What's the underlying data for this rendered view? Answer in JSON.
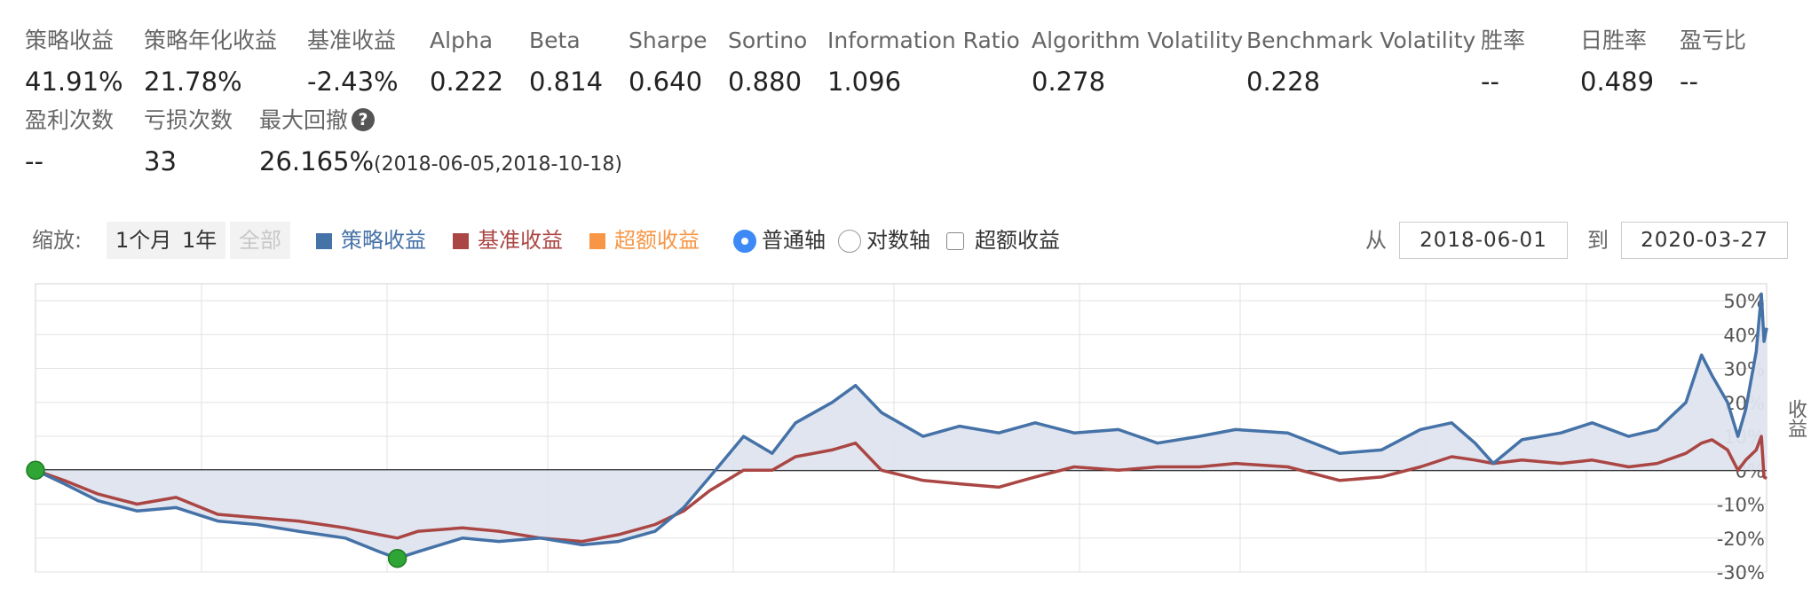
{
  "stats": {
    "row1": [
      {
        "label": "策略收益",
        "value": "41.91%"
      },
      {
        "label": "策略年化收益",
        "value": "21.78%"
      },
      {
        "label": "基准收益",
        "value": "-2.43%"
      },
      {
        "label": "Alpha",
        "value": "0.222"
      },
      {
        "label": "Beta",
        "value": "0.814"
      },
      {
        "label": "Sharpe",
        "value": "0.640"
      },
      {
        "label": "Sortino",
        "value": "0.880"
      },
      {
        "label": "Information Ratio",
        "value": "1.096"
      },
      {
        "label": "Algorithm Volatility",
        "value": "0.278"
      },
      {
        "label": "Benchmark Volatility",
        "value": "0.228"
      },
      {
        "label": "胜率",
        "value": "--"
      },
      {
        "label": "日胜率",
        "value": "0.489"
      },
      {
        "label": "盈亏比",
        "value": "--"
      }
    ],
    "row2": [
      {
        "label": "盈利次数",
        "value": "--"
      },
      {
        "label": "亏损次数",
        "value": "33"
      },
      {
        "label": "最大回撤",
        "value": "26.165%",
        "sub": "(2018-06-05,2018-10-18)"
      }
    ]
  },
  "toolbar": {
    "zoom_label": "缩放:",
    "zoom_buttons": [
      "1个月",
      "1年",
      "全部"
    ],
    "legend": [
      {
        "label": "策略收益",
        "color": "#4572a7"
      },
      {
        "label": "基准收益",
        "color": "#aa4643"
      },
      {
        "label": "超额收益",
        "color": "#f79646"
      }
    ],
    "axis_options": [
      "普通轴",
      "对数轴"
    ],
    "excess_checkbox": "超额收益",
    "from_label": "从",
    "from_date": "2018-06-01",
    "to_label": "到",
    "to_date": "2020-03-27"
  },
  "chart_data": {
    "type": "line",
    "ylabel": "收益",
    "yticks": [
      "50%",
      "40%",
      "30%",
      "20%",
      "10%",
      "0%",
      "-10%",
      "-20%",
      "-30%"
    ],
    "ylim": [
      -30,
      55
    ],
    "xlim": [
      "2018-06-01",
      "2020-03-27"
    ],
    "legend_position": "top",
    "grid": true,
    "series": [
      {
        "name": "策略收益",
        "color": "#4572a7",
        "fill": "#dfe4ef",
        "points": [
          [
            "2018-06-01",
            0
          ],
          [
            "2018-06-12",
            -4
          ],
          [
            "2018-06-25",
            -9
          ],
          [
            "2018-07-10",
            -12
          ],
          [
            "2018-07-25",
            -11
          ],
          [
            "2018-08-10",
            -15
          ],
          [
            "2018-08-25",
            -16
          ],
          [
            "2018-09-10",
            -18
          ],
          [
            "2018-09-28",
            -20
          ],
          [
            "2018-10-11",
            -24
          ],
          [
            "2018-10-18",
            -26
          ],
          [
            "2018-10-26",
            -24
          ],
          [
            "2018-11-12",
            -20
          ],
          [
            "2018-11-26",
            -21
          ],
          [
            "2018-12-12",
            -20
          ],
          [
            "2018-12-28",
            -22
          ],
          [
            "2019-01-11",
            -21
          ],
          [
            "2019-01-25",
            -18
          ],
          [
            "2019-02-05",
            -11
          ],
          [
            "2019-02-15",
            -2
          ],
          [
            "2019-02-28",
            10
          ],
          [
            "2019-03-11",
            5
          ],
          [
            "2019-03-20",
            14
          ],
          [
            "2019-04-03",
            20
          ],
          [
            "2019-04-12",
            25
          ],
          [
            "2019-04-22",
            17
          ],
          [
            "2019-05-08",
            10
          ],
          [
            "2019-05-22",
            13
          ],
          [
            "2019-06-06",
            11
          ],
          [
            "2019-06-20",
            14
          ],
          [
            "2019-07-05",
            11
          ],
          [
            "2019-07-22",
            12
          ],
          [
            "2019-08-06",
            8
          ],
          [
            "2019-08-22",
            10
          ],
          [
            "2019-09-05",
            12
          ],
          [
            "2019-09-25",
            11
          ],
          [
            "2019-10-15",
            5
          ],
          [
            "2019-10-31",
            6
          ],
          [
            "2019-11-15",
            12
          ],
          [
            "2019-11-27",
            14
          ],
          [
            "2019-12-06",
            8
          ],
          [
            "2019-12-13",
            2
          ],
          [
            "2019-12-24",
            9
          ],
          [
            "2020-01-08",
            11
          ],
          [
            "2020-01-20",
            14
          ],
          [
            "2020-02-03",
            10
          ],
          [
            "2020-02-14",
            12
          ],
          [
            "2020-02-25",
            20
          ],
          [
            "2020-03-02",
            34
          ],
          [
            "2020-03-06",
            28
          ],
          [
            "2020-03-12",
            20
          ],
          [
            "2020-03-16",
            10
          ],
          [
            "2020-03-19",
            18
          ],
          [
            "2020-03-23",
            35
          ],
          [
            "2020-03-25",
            52
          ],
          [
            "2020-03-26",
            38
          ],
          [
            "2020-03-27",
            42
          ]
        ]
      },
      {
        "name": "基准收益",
        "color": "#aa4643",
        "points": [
          [
            "2018-06-01",
            0
          ],
          [
            "2018-06-12",
            -3
          ],
          [
            "2018-06-25",
            -7
          ],
          [
            "2018-07-10",
            -10
          ],
          [
            "2018-07-25",
            -8
          ],
          [
            "2018-08-10",
            -13
          ],
          [
            "2018-08-25",
            -14
          ],
          [
            "2018-09-10",
            -15
          ],
          [
            "2018-09-28",
            -17
          ],
          [
            "2018-10-11",
            -19
          ],
          [
            "2018-10-18",
            -20
          ],
          [
            "2018-10-26",
            -18
          ],
          [
            "2018-11-12",
            -17
          ],
          [
            "2018-11-26",
            -18
          ],
          [
            "2018-12-12",
            -20
          ],
          [
            "2018-12-28",
            -21
          ],
          [
            "2019-01-11",
            -19
          ],
          [
            "2019-01-25",
            -16
          ],
          [
            "2019-02-05",
            -12
          ],
          [
            "2019-02-15",
            -6
          ],
          [
            "2019-02-28",
            0
          ],
          [
            "2019-03-11",
            0
          ],
          [
            "2019-03-20",
            4
          ],
          [
            "2019-04-03",
            6
          ],
          [
            "2019-04-12",
            8
          ],
          [
            "2019-04-22",
            0
          ],
          [
            "2019-05-08",
            -3
          ],
          [
            "2019-05-22",
            -4
          ],
          [
            "2019-06-06",
            -5
          ],
          [
            "2019-06-20",
            -2
          ],
          [
            "2019-07-05",
            1
          ],
          [
            "2019-07-22",
            0
          ],
          [
            "2019-08-06",
            1
          ],
          [
            "2019-08-22",
            1
          ],
          [
            "2019-09-05",
            2
          ],
          [
            "2019-09-25",
            1
          ],
          [
            "2019-10-15",
            -3
          ],
          [
            "2019-10-31",
            -2
          ],
          [
            "2019-11-15",
            1
          ],
          [
            "2019-11-27",
            4
          ],
          [
            "2019-12-06",
            3
          ],
          [
            "2019-12-13",
            2
          ],
          [
            "2019-12-24",
            3
          ],
          [
            "2020-01-08",
            2
          ],
          [
            "2020-01-20",
            3
          ],
          [
            "2020-02-03",
            1
          ],
          [
            "2020-02-14",
            2
          ],
          [
            "2020-02-25",
            5
          ],
          [
            "2020-03-02",
            8
          ],
          [
            "2020-03-06",
            9
          ],
          [
            "2020-03-12",
            6
          ],
          [
            "2020-03-16",
            0
          ],
          [
            "2020-03-19",
            3
          ],
          [
            "2020-03-23",
            6
          ],
          [
            "2020-03-25",
            10
          ],
          [
            "2020-03-26",
            -2
          ],
          [
            "2020-03-27",
            -2.43
          ]
        ]
      }
    ],
    "markers": [
      {
        "date": "2018-06-01",
        "value": 0,
        "color": "#2fa536"
      },
      {
        "date": "2018-10-18",
        "value": -26,
        "color": "#2fa536"
      }
    ]
  }
}
